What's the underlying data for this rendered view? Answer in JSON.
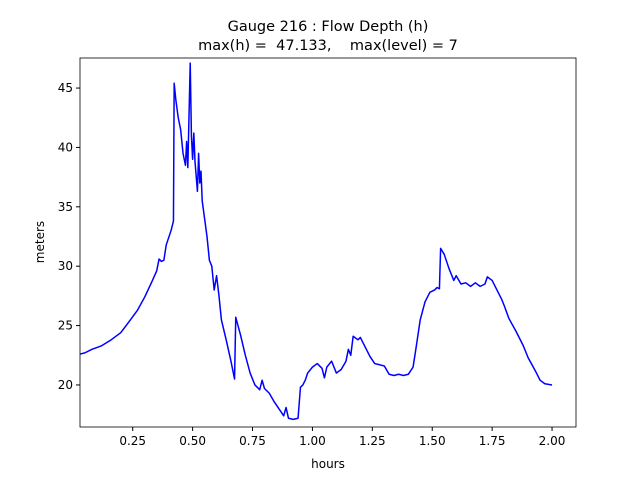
{
  "chart_data": {
    "type": "line",
    "title": "Gauge 216 : Flow Depth (h)",
    "subtitle": "max(h) =  47.133,    max(level) = 7",
    "x_label": "hours",
    "y_label": "meters",
    "color": "#0000ff",
    "x": [
      0.03,
      0.05,
      0.08,
      0.12,
      0.16,
      0.2,
      0.23,
      0.27,
      0.3,
      0.33,
      0.35,
      0.36,
      0.37,
      0.38,
      0.39,
      0.41,
      0.42,
      0.423,
      0.43,
      0.44,
      0.45,
      0.46,
      0.47,
      0.475,
      0.48,
      0.49,
      0.495,
      0.5,
      0.505,
      0.51,
      0.52,
      0.525,
      0.53,
      0.535,
      0.54,
      0.56,
      0.57,
      0.58,
      0.59,
      0.6,
      0.61,
      0.62,
      0.64,
      0.66,
      0.675,
      0.68,
      0.7,
      0.72,
      0.74,
      0.76,
      0.78,
      0.79,
      0.8,
      0.82,
      0.84,
      0.86,
      0.88,
      0.89,
      0.9,
      0.92,
      0.94,
      0.95,
      0.96,
      0.97,
      0.98,
      1.0,
      1.02,
      1.04,
      1.05,
      1.06,
      1.08,
      1.1,
      1.12,
      1.14,
      1.15,
      1.16,
      1.17,
      1.19,
      1.2,
      1.22,
      1.24,
      1.26,
      1.28,
      1.3,
      1.32,
      1.34,
      1.36,
      1.38,
      1.4,
      1.42,
      1.43,
      1.45,
      1.47,
      1.49,
      1.51,
      1.52,
      1.53,
      1.535,
      1.55,
      1.57,
      1.59,
      1.6,
      1.62,
      1.64,
      1.66,
      1.68,
      1.7,
      1.72,
      1.73,
      1.75,
      1.77,
      1.79,
      1.8,
      1.82,
      1.85,
      1.88,
      1.9,
      1.93,
      1.95,
      1.97,
      2.0
    ],
    "values": [
      22.6,
      22.7,
      23.0,
      23.3,
      23.8,
      24.4,
      25.2,
      26.3,
      27.4,
      28.7,
      29.6,
      30.6,
      30.4,
      30.5,
      31.8,
      33.0,
      33.8,
      45.4,
      44.0,
      42.5,
      41.5,
      39.5,
      38.5,
      40.5,
      38.3,
      47.1,
      41.0,
      39.0,
      41.2,
      38.8,
      36.3,
      39.5,
      37.0,
      38.0,
      35.5,
      32.5,
      30.5,
      30.0,
      28.0,
      29.2,
      27.5,
      25.5,
      23.8,
      22.0,
      20.5,
      25.7,
      24.2,
      22.5,
      21.0,
      20.0,
      19.6,
      20.4,
      19.7,
      19.3,
      18.6,
      18.0,
      17.4,
      18.1,
      17.2,
      17.1,
      17.2,
      19.8,
      20.0,
      20.4,
      21.0,
      21.5,
      21.8,
      21.4,
      20.6,
      21.5,
      22.0,
      21.0,
      21.3,
      22.0,
      23.0,
      22.5,
      24.1,
      23.8,
      24.0,
      23.2,
      22.4,
      21.8,
      21.7,
      21.6,
      20.9,
      20.8,
      20.9,
      20.8,
      20.9,
      21.5,
      22.8,
      25.5,
      27.0,
      27.8,
      28.0,
      28.2,
      28.1,
      31.5,
      31.0,
      29.8,
      28.8,
      29.2,
      28.5,
      28.6,
      28.3,
      28.6,
      28.3,
      28.5,
      29.1,
      28.8,
      28.0,
      27.2,
      26.7,
      25.6,
      24.5,
      23.3,
      22.3,
      21.2,
      20.4,
      20.1,
      20.0
    ],
    "xlim": [
      0.03,
      2.1
    ],
    "ylim": [
      16.46,
      47.53
    ],
    "xticks": [
      0.25,
      {
        "value": 0.5,
        "label": "0.50"
      },
      0.75,
      {
        "value": 1,
        "label": "1.00"
      },
      1.25,
      {
        "value": 1.5,
        "label": "1.50"
      },
      1.75,
      {
        "value": 2,
        "label": "2.00"
      }
    ],
    "yticks": [
      20,
      25,
      30,
      35,
      40,
      45
    ]
  }
}
